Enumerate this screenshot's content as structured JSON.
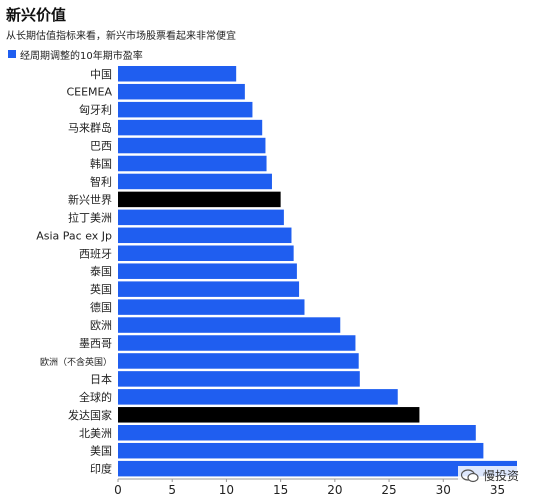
{
  "title": "新兴价值",
  "subtitle": "从长期估值指标来看，新兴市场股票看起来非常便宜",
  "legend_label": "经周期调整的10年期市盈率",
  "watermark": "慢投资",
  "colors": {
    "bar": "#1f5ef0",
    "highlight": "#000000",
    "axis": "#999999",
    "text": "#222222"
  },
  "chart_data": {
    "type": "bar",
    "orientation": "horizontal",
    "categories": [
      "中国",
      "CEEMEA",
      "匈牙利",
      "马来群岛",
      "巴西",
      "韩国",
      "智利",
      "新兴世界",
      "拉丁美洲",
      "Asia Pac ex Jp",
      "西班牙",
      "泰国",
      "英国",
      "德国",
      "欧洲",
      "墨西哥",
      "欧洲（不含英国）",
      "日本",
      "全球的",
      "发达国家",
      "北美洲",
      "美国",
      "印度"
    ],
    "values": [
      10.9,
      11.7,
      12.4,
      13.3,
      13.6,
      13.7,
      14.2,
      15.0,
      15.3,
      16.0,
      16.2,
      16.5,
      16.7,
      17.2,
      20.5,
      21.9,
      22.2,
      22.3,
      25.8,
      27.8,
      33.0,
      33.7,
      36.8
    ],
    "highlight": [
      false,
      false,
      false,
      false,
      false,
      false,
      false,
      true,
      false,
      false,
      false,
      false,
      false,
      false,
      false,
      false,
      false,
      false,
      false,
      true,
      false,
      false,
      false
    ],
    "series": [
      {
        "name": "经周期调整的10年期市盈率"
      }
    ],
    "xlim": [
      0,
      36.8
    ],
    "x_ticks": [
      "0",
      "5",
      "10",
      "15",
      "20",
      "25",
      "30",
      "35"
    ],
    "grid": false
  }
}
